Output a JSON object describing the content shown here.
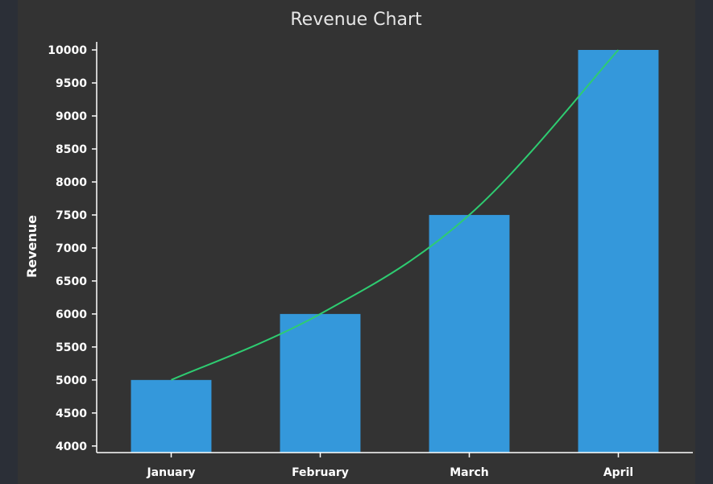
{
  "chart_data": {
    "type": "bar",
    "title": "Revenue Chart",
    "xlabel": "",
    "ylabel": "Revenue",
    "categories": [
      "January",
      "February",
      "March",
      "April"
    ],
    "values": [
      5000,
      6000,
      7500,
      10000
    ],
    "ylim": [
      3900,
      10000
    ],
    "yticks": [
      4000,
      4500,
      5000,
      5500,
      6000,
      6500,
      7000,
      7500,
      8000,
      8500,
      9000,
      9500,
      10000
    ],
    "trend_line": true,
    "grid": false,
    "legend": "none"
  },
  "colors": {
    "background": "#333333",
    "bar": "#3498db",
    "line": "#2ecc71",
    "axis": "#ffffff",
    "text": "#ffffff"
  }
}
